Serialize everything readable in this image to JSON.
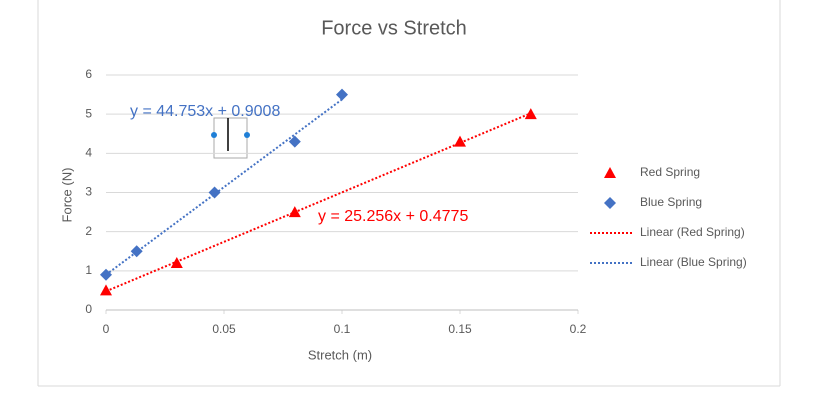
{
  "chart_data": {
    "type": "scatter",
    "title": "Force vs Stretch",
    "x_label": "Stretch (m)",
    "y_label": "Force (N)",
    "xlim": [
      0,
      0.2
    ],
    "xticks": [
      0,
      0.05,
      0.1,
      0.15,
      0.2
    ],
    "ylim": [
      0,
      6
    ],
    "yticks": [
      0,
      1,
      2,
      3,
      4,
      5,
      6
    ],
    "grid": true,
    "legend": "right",
    "series": [
      {
        "name": "Red Spring",
        "color": "#ff0000",
        "marker": "triangle",
        "x": [
          0,
          0.03,
          0.08,
          0.15,
          0.18
        ],
        "values": [
          0.5,
          1.2,
          2.5,
          4.3,
          5.0
        ],
        "trendline": {
          "name": "Linear (Red Spring)",
          "slope": 25.256,
          "intercept": 0.4775,
          "equation": "y = 25.256x + 0.4775"
        }
      },
      {
        "name": "Blue Spring",
        "color": "#4472c4",
        "marker": "diamond",
        "x": [
          0,
          0.013,
          0.046,
          0.08,
          0.1
        ],
        "values": [
          0.9,
          1.5,
          3.0,
          4.3,
          5.5
        ],
        "trendline": {
          "name": "Linear (Blue Spring)",
          "slope": 44.753,
          "intercept": 0.9008,
          "equation": "y = 44.753x + 0.9008"
        }
      }
    ]
  }
}
